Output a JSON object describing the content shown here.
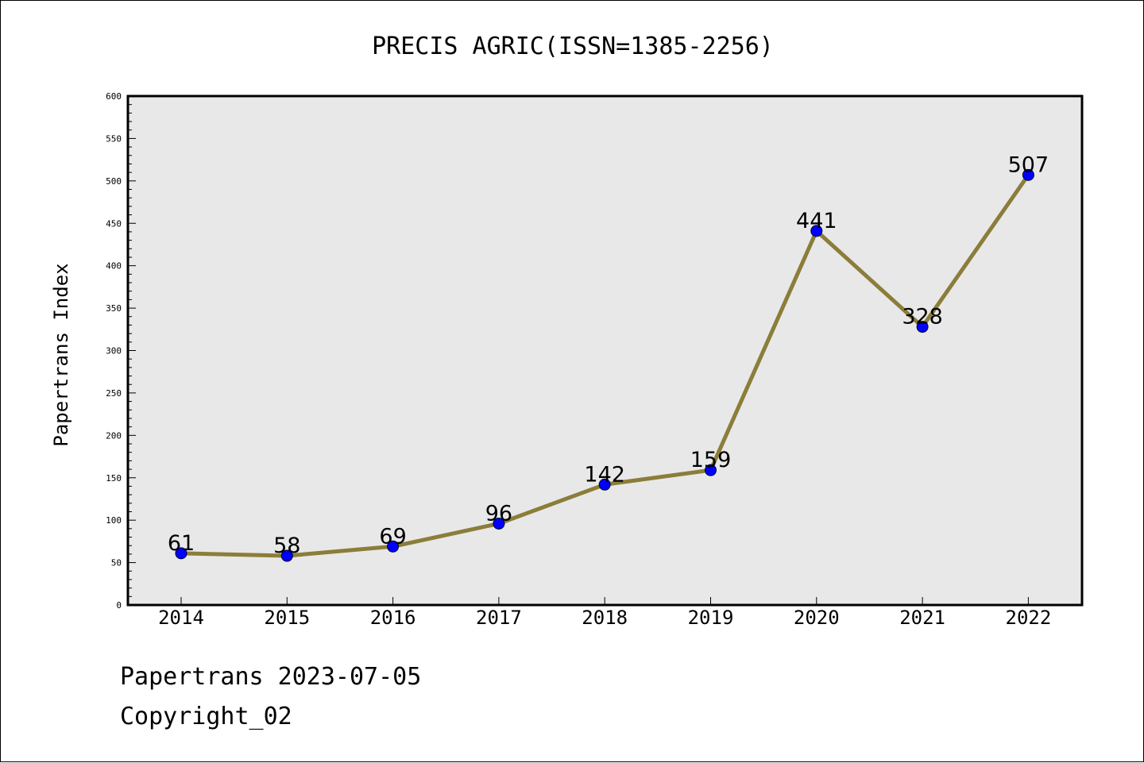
{
  "chart_data": {
    "type": "line",
    "title": "PRECIS AGRIC(ISSN=1385-2256)",
    "xlabel": "",
    "ylabel": "Papertrans Index",
    "categories": [
      "2014",
      "2015",
      "2016",
      "2017",
      "2018",
      "2019",
      "2020",
      "2021",
      "2022"
    ],
    "series": [
      {
        "values": [
          61,
          58,
          69,
          96,
          142,
          159,
          441,
          328,
          507
        ]
      }
    ],
    "data_labels": [
      "61",
      "58",
      "69",
      "96",
      "142",
      "159",
      "441",
      "328",
      "507"
    ],
    "ylim": [
      0,
      600
    ],
    "yticks": [
      "0",
      "50",
      "100",
      "150",
      "200",
      "250",
      "300",
      "350",
      "400",
      "450",
      "500",
      "550",
      "600"
    ],
    "grid": false,
    "legend": "none",
    "colors": {
      "line": "#8b7d3a",
      "marker": "#0000ff",
      "plot_bg": "#e8e8e8",
      "frame": "#000000"
    }
  },
  "footer": {
    "line1": "Papertrans 2023-07-05",
    "line2": "Copyright_02"
  }
}
